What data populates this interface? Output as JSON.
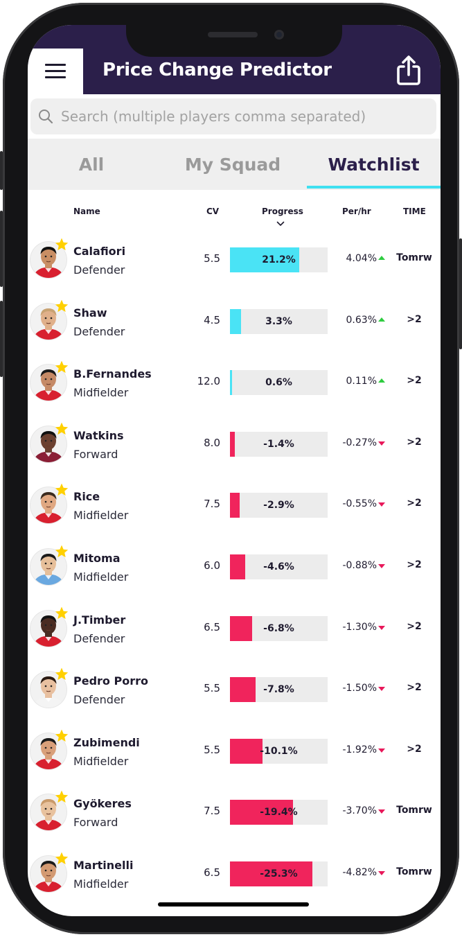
{
  "header": {
    "title": "Price Change Predictor",
    "menu_icon": "hamburger-menu-icon",
    "share_icon": "share-icon",
    "background": "#2b1f4a"
  },
  "search": {
    "placeholder": "Search (multiple players comma separated)",
    "value": ""
  },
  "tabs": [
    {
      "label": "All",
      "active": false
    },
    {
      "label": "My Squad",
      "active": false
    },
    {
      "label": "Watchlist",
      "active": true
    }
  ],
  "columns": {
    "name": "Name",
    "cv": "CV",
    "progress": "Progress",
    "per_hr": "Per/hr",
    "time": "TIME"
  },
  "colors": {
    "rise": "#4ae3f5",
    "fall": "#f0245c",
    "up_arrow": "#2ecc40",
    "down_arrow": "#e8185a",
    "tab_underline": "#3fe0f0"
  },
  "players": [
    {
      "name": "Calafiori",
      "position": "Defender",
      "cv": "5.5",
      "progress": "21.2%",
      "progress_value": 21.2,
      "per_hr": "4.04%",
      "trend": "up",
      "time": "Tomrw",
      "watchlisted": true
    },
    {
      "name": "Shaw",
      "position": "Defender",
      "cv": "4.5",
      "progress": "3.3%",
      "progress_value": 3.3,
      "per_hr": "0.63%",
      "trend": "up",
      "time": ">2",
      "watchlisted": true
    },
    {
      "name": "B.Fernandes",
      "position": "Midfielder",
      "cv": "12.0",
      "progress": "0.6%",
      "progress_value": 0.6,
      "per_hr": "0.11%",
      "trend": "up",
      "time": ">2",
      "watchlisted": true
    },
    {
      "name": "Watkins",
      "position": "Forward",
      "cv": "8.0",
      "progress": "-1.4%",
      "progress_value": -1.4,
      "per_hr": "-0.27%",
      "trend": "down",
      "time": ">2",
      "watchlisted": true
    },
    {
      "name": "Rice",
      "position": "Midfielder",
      "cv": "7.5",
      "progress": "-2.9%",
      "progress_value": -2.9,
      "per_hr": "-0.55%",
      "trend": "down",
      "time": ">2",
      "watchlisted": true
    },
    {
      "name": "Mitoma",
      "position": "Midfielder",
      "cv": "6.0",
      "progress": "-4.6%",
      "progress_value": -4.6,
      "per_hr": "-0.88%",
      "trend": "down",
      "time": ">2",
      "watchlisted": true
    },
    {
      "name": "J.Timber",
      "position": "Defender",
      "cv": "6.5",
      "progress": "-6.8%",
      "progress_value": -6.8,
      "per_hr": "-1.30%",
      "trend": "down",
      "time": ">2",
      "watchlisted": true
    },
    {
      "name": "Pedro Porro",
      "position": "Defender",
      "cv": "5.5",
      "progress": "-7.8%",
      "progress_value": -7.8,
      "per_hr": "-1.50%",
      "trend": "down",
      "time": ">2",
      "watchlisted": true
    },
    {
      "name": "Zubimendi",
      "position": "Midfielder",
      "cv": "5.5",
      "progress": "-10.1%",
      "progress_value": -10.1,
      "per_hr": "-1.92%",
      "trend": "down",
      "time": ">2",
      "watchlisted": true
    },
    {
      "name": "Gyökeres",
      "position": "Forward",
      "cv": "7.5",
      "progress": "-19.4%",
      "progress_value": -19.4,
      "per_hr": "-3.70%",
      "trend": "down",
      "time": "Tomrw",
      "watchlisted": true
    },
    {
      "name": "Martinelli",
      "position": "Midfielder",
      "cv": "6.5",
      "progress": "-25.3%",
      "progress_value": -25.3,
      "per_hr": "-4.82%",
      "trend": "down",
      "time": "Tomrw",
      "watchlisted": true
    }
  ]
}
